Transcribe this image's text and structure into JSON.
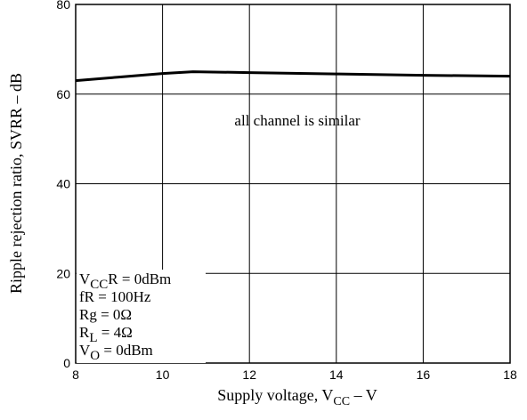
{
  "chart_data": {
    "type": "line",
    "xlabel": "Supply voltage, V",
    "xlabel_sub": "CC",
    "xlabel_unit": " –  V",
    "ylabel": "Ripple rejection ratio, SVRR  – dB",
    "xlim": [
      8,
      18
    ],
    "ylim": [
      0,
      80
    ],
    "xticks": [
      8,
      10,
      12,
      14,
      16,
      18
    ],
    "yticks": [
      0,
      20,
      40,
      60,
      80
    ],
    "grid": true,
    "series": [
      {
        "x": [
          8,
          9,
          10,
          10.7,
          12,
          14,
          16,
          18
        ],
        "y": [
          63,
          63.8,
          64.6,
          65,
          64.8,
          64.5,
          64.2,
          64.0
        ]
      }
    ],
    "annotation": "all channel is similar",
    "conditions": [
      {
        "main": "V",
        "sub": "CC",
        "rest": "R = 0dBm"
      },
      {
        "main": "fR = 100Hz",
        "sub": "",
        "rest": ""
      },
      {
        "main": "Rg = 0Ω",
        "sub": "",
        "rest": ""
      },
      {
        "main": "R",
        "sub": "L",
        "rest": " = 4Ω"
      },
      {
        "main": "V",
        "sub": "O",
        "rest": " = 0dBm"
      }
    ]
  }
}
